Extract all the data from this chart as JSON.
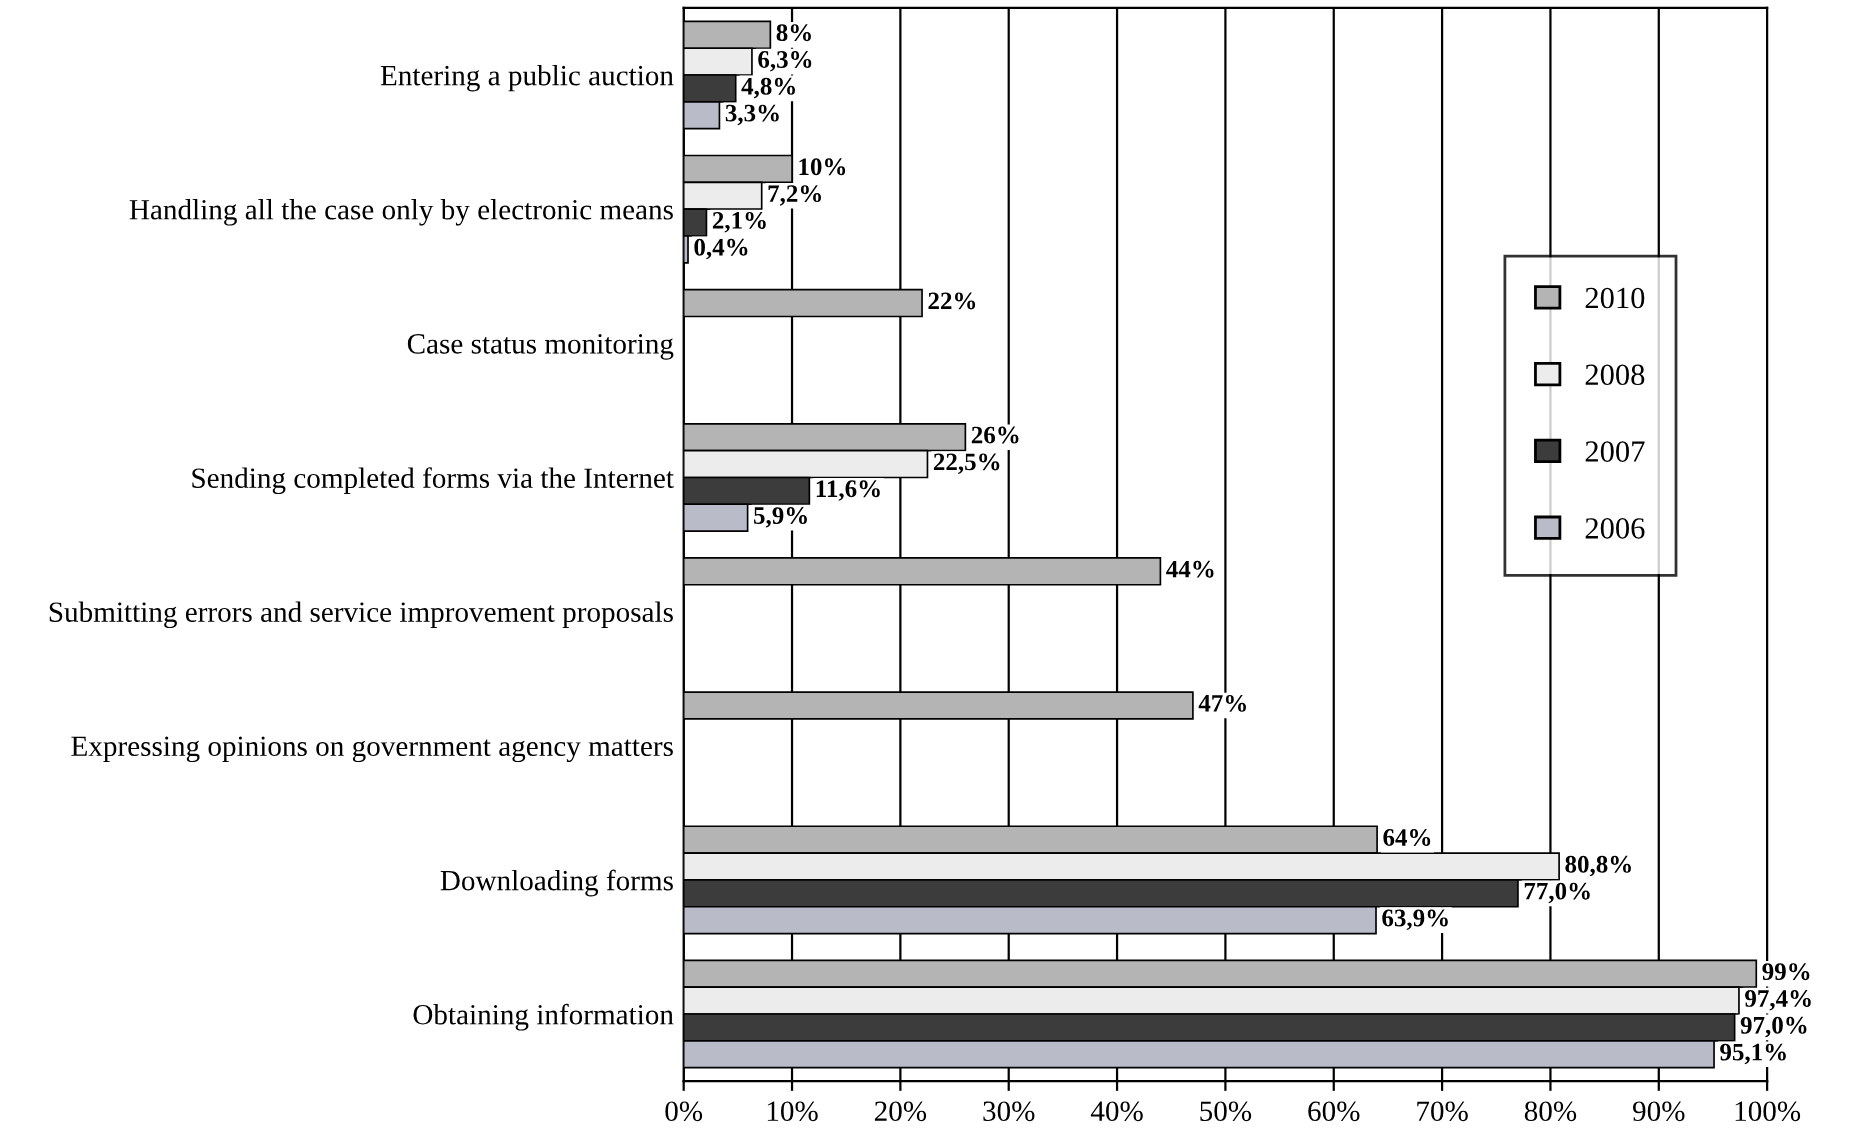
{
  "chart_data": {
    "type": "bar",
    "orientation": "horizontal",
    "categories": [
      "Entering a public auction",
      "Handling all the case only by electronic means",
      "Case status monitoring",
      "Sending completed forms via the Internet",
      "Submitting errors and service improvement proposals",
      "Expressing opinions on government agency matters",
      "Downloading forms",
      "Obtaining information"
    ],
    "series": [
      {
        "name": "2010",
        "color": "#b4b4b4",
        "values": [
          8,
          10,
          22,
          26,
          44,
          47,
          64,
          99
        ],
        "value_labels": [
          "8%",
          "10%",
          "22%",
          "26%",
          "44%",
          "47%",
          "64%",
          "99%"
        ]
      },
      {
        "name": "2008",
        "color": "#ececec",
        "values": [
          6.3,
          7.2,
          null,
          22.5,
          null,
          null,
          80.8,
          97.4
        ],
        "value_labels": [
          "6,3%",
          "7,2%",
          null,
          "22,5%",
          null,
          null,
          "80,8%",
          "97,4%"
        ]
      },
      {
        "name": "2007",
        "color": "#3c3c3c",
        "values": [
          4.8,
          2.1,
          null,
          11.6,
          null,
          null,
          77.0,
          97.0
        ],
        "value_labels": [
          "4,8%",
          "2,1%",
          null,
          "11,6%",
          null,
          null,
          "77,0%",
          "97,0%"
        ]
      },
      {
        "name": "2006",
        "color": "#b9bcc8",
        "values": [
          3.3,
          0.4,
          null,
          5.9,
          null,
          null,
          63.9,
          95.1
        ],
        "value_labels": [
          "3,3%",
          "0,4%",
          null,
          "5,9%",
          null,
          null,
          "63,9%",
          "95,1%"
        ]
      }
    ],
    "xlim": [
      0,
      100
    ],
    "xticks": [
      {
        "value": 0,
        "label": "0%"
      },
      {
        "value": 10,
        "label": "10%"
      },
      {
        "value": 20,
        "label": "20%"
      },
      {
        "value": 30,
        "label": "30%"
      },
      {
        "value": 40,
        "label": "40%"
      },
      {
        "value": 50,
        "label": "50%"
      },
      {
        "value": 60,
        "label": "60%"
      },
      {
        "value": 70,
        "label": "70%"
      },
      {
        "value": 80,
        "label": "80%"
      },
      {
        "value": 90,
        "label": "90%"
      },
      {
        "value": 100,
        "label": "100%"
      }
    ],
    "grid": "x",
    "legend": "right"
  }
}
